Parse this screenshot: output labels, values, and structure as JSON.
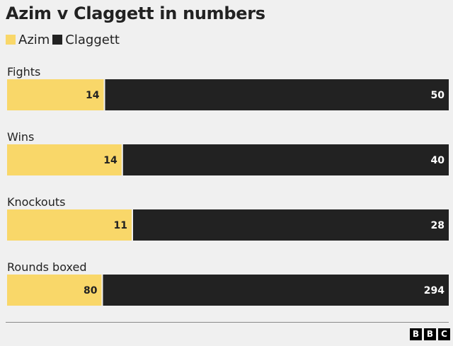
{
  "title": "Azim v Claggett in numbers",
  "legend": [
    {
      "name": "Azim",
      "color": "#f9d769"
    },
    {
      "name": "Claggett",
      "color": "#222222"
    }
  ],
  "chart_data": {
    "type": "bar",
    "orientation": "horizontal",
    "stacked": "100%",
    "categories": [
      "Fights",
      "Wins",
      "Knockouts",
      "Rounds boxed"
    ],
    "series": [
      {
        "name": "Azim",
        "values": [
          14,
          14,
          11,
          80
        ],
        "color": "#f9d769"
      },
      {
        "name": "Claggett",
        "values": [
          50,
          40,
          28,
          294
        ],
        "color": "#222222"
      }
    ],
    "legend_position": "top-left",
    "grid": false
  },
  "logo": [
    "B",
    "B",
    "C"
  ]
}
